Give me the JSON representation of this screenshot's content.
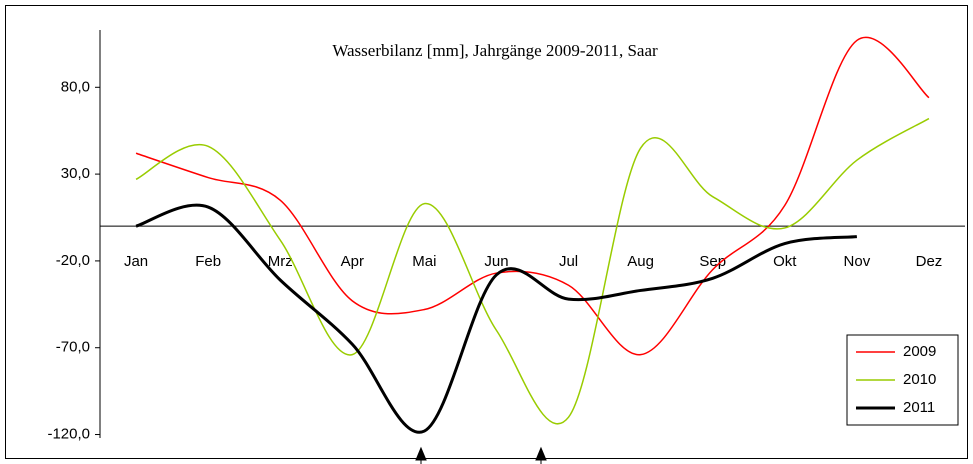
{
  "chart_data": {
    "type": "line",
    "title": "Wasserbilanz [mm], Jahrgänge 2009-2011, Saar",
    "categories": [
      "Jan",
      "Feb",
      "Mrz",
      "Apr",
      "Mai",
      "Jun",
      "Jul",
      "Aug",
      "Sep",
      "Okt",
      "Nov",
      "Dez"
    ],
    "series": [
      {
        "name": "2009",
        "color": "#ff0000",
        "width": 1.5,
        "values": [
          42,
          28,
          15,
          -43,
          -48,
          -27,
          -34,
          -74,
          -25,
          12,
          107,
          74
        ]
      },
      {
        "name": "2010",
        "color": "#99cc00",
        "width": 1.5,
        "values": [
          27,
          46,
          -8,
          -74,
          13,
          -60,
          -110,
          45,
          17,
          -1,
          38,
          62
        ]
      },
      {
        "name": "2011",
        "color": "#000000",
        "width": 3,
        "values": [
          0,
          11,
          -31,
          -68,
          -118,
          -28,
          -42,
          -37,
          -30,
          -10,
          -6,
          null
        ]
      }
    ],
    "ylim": [
      -122,
      113
    ],
    "yticks": [
      {
        "value": 80,
        "label": "80,0"
      },
      {
        "value": 30,
        "label": "30,0"
      },
      {
        "value": -20,
        "label": "-20,0"
      },
      {
        "value": -70,
        "label": "-70,0"
      },
      {
        "value": -120,
        "label": "-120,0"
      }
    ],
    "legend": "bottom-right"
  }
}
